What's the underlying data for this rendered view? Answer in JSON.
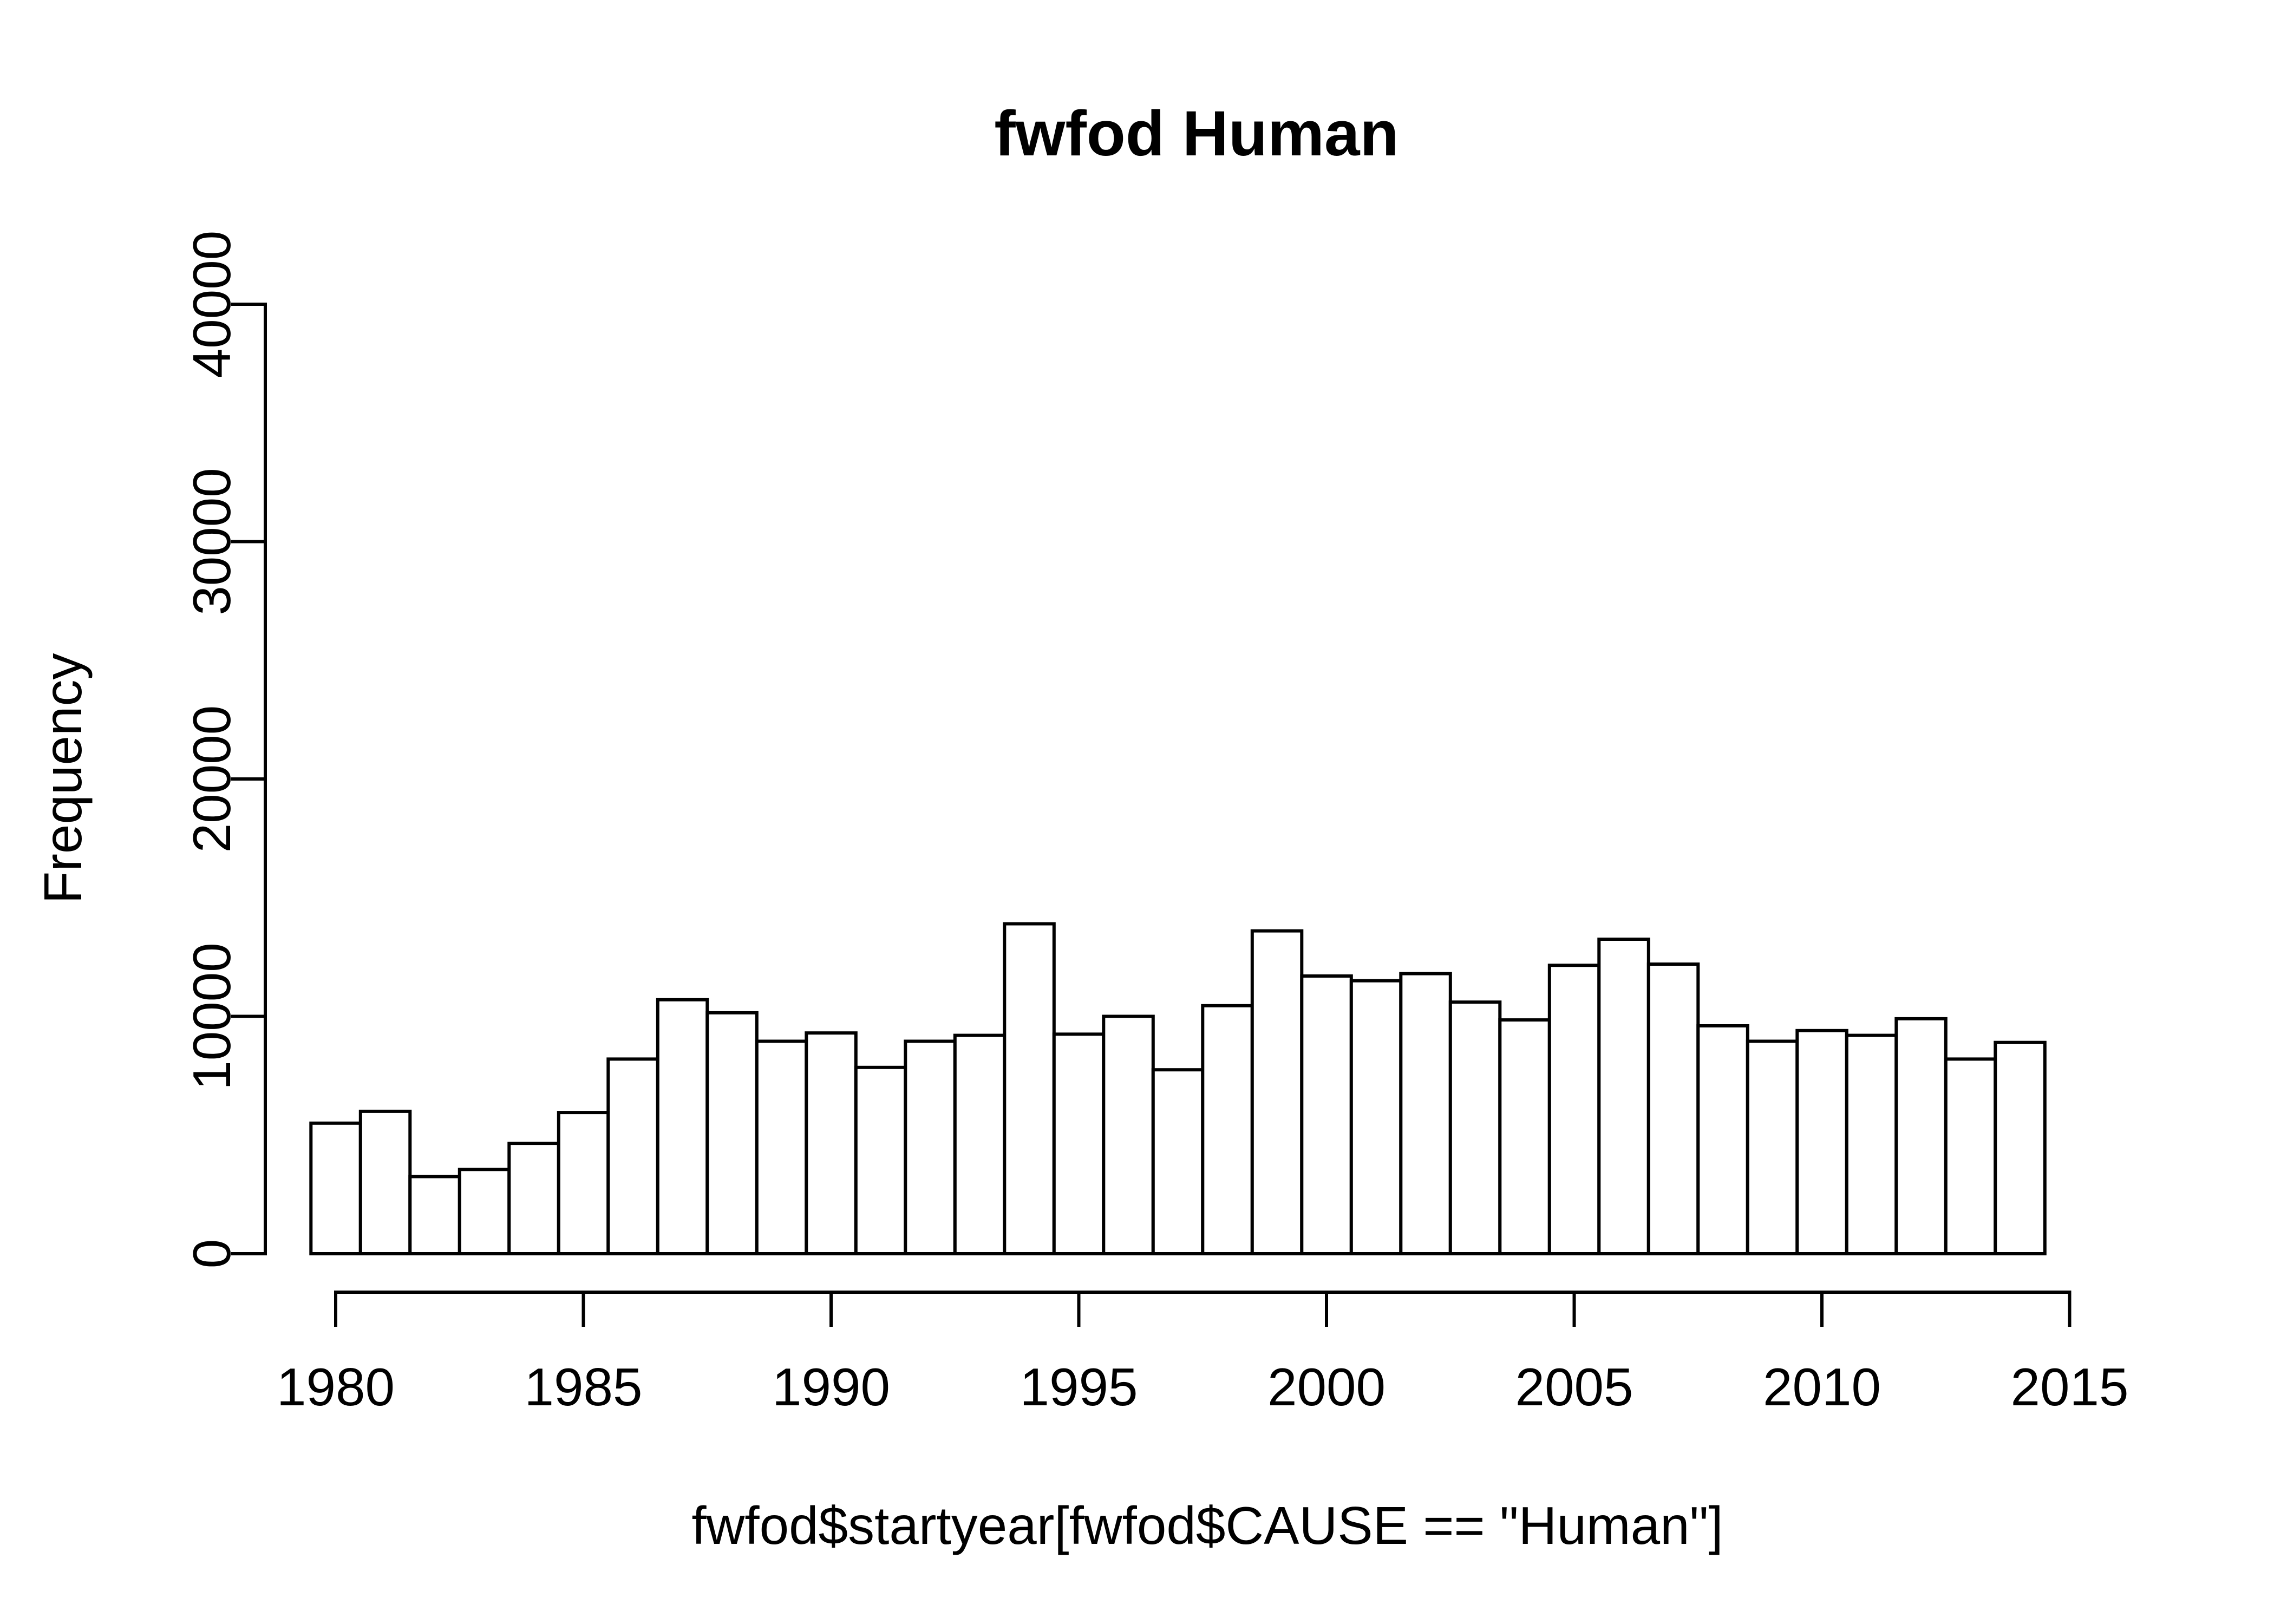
{
  "figure": {
    "background_color": "#ffffff",
    "ink_color": "#000000"
  },
  "chart_data": {
    "type": "bar",
    "subtype": "histogram",
    "title": "fwfod Human",
    "xlabel": "fwfod$startyear[fwfod$CAUSE == \"Human\"]",
    "ylabel": "Frequency",
    "categories": [
      1980,
      1981,
      1982,
      1983,
      1984,
      1985,
      1986,
      1987,
      1988,
      1989,
      1990,
      1991,
      1992,
      1993,
      1994,
      1995,
      1996,
      1997,
      1998,
      1999,
      2000,
      2001,
      2002,
      2003,
      2004,
      2005,
      2006,
      2007,
      2008,
      2009,
      2010,
      2011,
      2012,
      2013,
      2014
    ],
    "values": [
      5500,
      6000,
      3250,
      3550,
      4650,
      5950,
      8200,
      10700,
      10150,
      8950,
      9300,
      7850,
      8950,
      9200,
      13900,
      9250,
      10000,
      7750,
      10450,
      13600,
      11700,
      11500,
      11800,
      10600,
      9850,
      12150,
      13250,
      12200,
      9600,
      8950,
      9400,
      9200,
      9900,
      8200,
      8900
    ],
    "bin_width_years": 1,
    "xlim": [
      1979.5,
      2015
    ],
    "ylim": [
      0,
      40000
    ],
    "xticks": [
      1980,
      1985,
      1990,
      1995,
      2000,
      2005,
      2010,
      2015
    ],
    "yticks": [
      0,
      10000,
      20000,
      30000,
      40000
    ],
    "bar_fill": "#ffffff",
    "bar_border": "#000000",
    "grid": false,
    "legend_position": "none"
  }
}
